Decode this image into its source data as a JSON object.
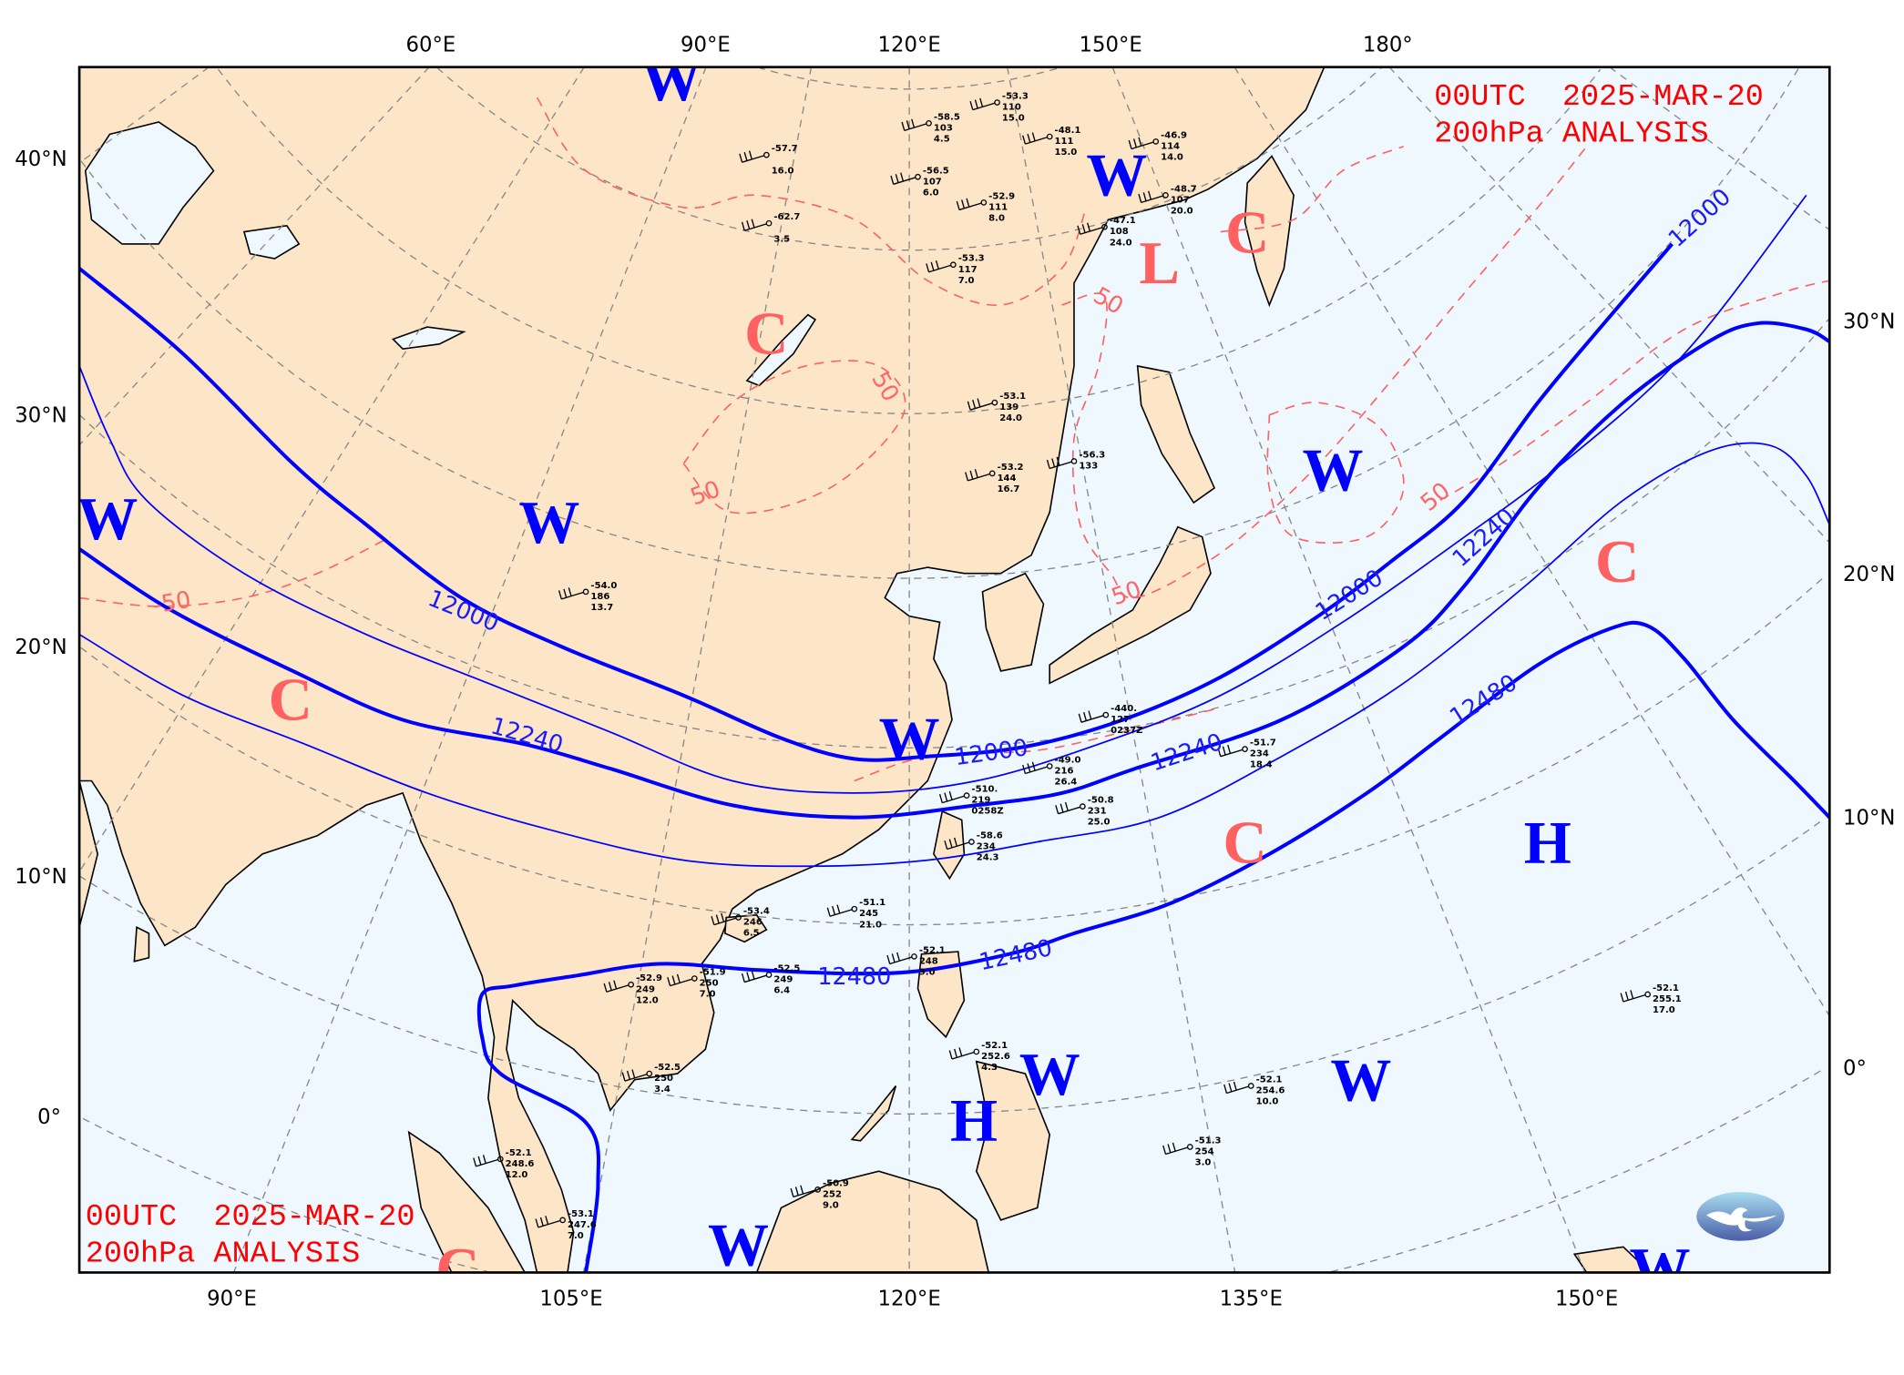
{
  "title": {
    "line1": "00UTC  2025-MAR-20",
    "line2": "200hPa ANALYSIS"
  },
  "colors": {
    "land": "#fde6c8",
    "ocean": "#eff8fe",
    "height_contour": "#0000ff",
    "isotherm": "#ff6060",
    "warm_center": "#0000ff",
    "cold_center": "#ff6060",
    "graticule": "#888888"
  },
  "axes": {
    "top": [
      "60°E",
      "90°E",
      "120°E",
      "150°E",
      "180°"
    ],
    "bottom": [
      "90°E",
      "105°E",
      "120°E",
      "135°E",
      "150°E"
    ],
    "left": [
      "40°N",
      "30°N",
      "20°N",
      "10°N",
      "0°"
    ],
    "right": [
      "30°N",
      "20°N",
      "10°N",
      "0°"
    ]
  },
  "centers": [
    {
      "label": "W",
      "type": "warm"
    },
    {
      "label": "W",
      "type": "warm"
    },
    {
      "label": "W",
      "type": "warm"
    },
    {
      "label": "W",
      "type": "warm"
    },
    {
      "label": "W",
      "type": "warm"
    },
    {
      "label": "W",
      "type": "warm"
    },
    {
      "label": "W",
      "type": "warm"
    },
    {
      "label": "W",
      "type": "warm"
    },
    {
      "label": "W",
      "type": "warm"
    },
    {
      "label": "W",
      "type": "warm"
    },
    {
      "label": "C",
      "type": "cold"
    },
    {
      "label": "C",
      "type": "cold"
    },
    {
      "label": "C",
      "type": "cold"
    },
    {
      "label": "C",
      "type": "cold"
    },
    {
      "label": "C",
      "type": "cold"
    },
    {
      "label": "C",
      "type": "cold"
    },
    {
      "label": "L",
      "type": "low"
    },
    {
      "label": "H",
      "type": "high"
    },
    {
      "label": "H",
      "type": "high"
    }
  ],
  "height_contour_labels": [
    "12000",
    "12000",
    "12000",
    "12000",
    "12240",
    "12240",
    "12240",
    "12480",
    "12480",
    "12480"
  ],
  "isotherm_labels": [
    "-50",
    "50",
    "50",
    "50",
    "50",
    "50"
  ],
  "stations": [
    {
      "t": "-58.5",
      "h": "103",
      "d": "4.5"
    },
    {
      "t": "-53.3",
      "h": "110",
      "d": "15.0"
    },
    {
      "t": "-56.5",
      "h": "107",
      "d": "6.0"
    },
    {
      "t": "-52.9",
      "h": "111",
      "d": "8.0"
    },
    {
      "t": "-53.3",
      "h": "117",
      "d": "7.0"
    },
    {
      "t": "-48.1",
      "h": "111",
      "d": "15.0"
    },
    {
      "t": "-46.9",
      "h": "114",
      "d": "14.0"
    },
    {
      "t": "-47.1",
      "h": "108",
      "d": "24.0"
    },
    {
      "t": "-48.7",
      "h": "107",
      "d": "20.0"
    },
    {
      "t": "-52.9",
      "h": "249",
      "d": "12.0"
    },
    {
      "t": "-51.9",
      "h": "250",
      "d": "7.0"
    },
    {
      "t": "-52.5",
      "h": "249",
      "d": "6.4"
    },
    {
      "t": "-52.5",
      "h": "250",
      "d": "3.4"
    },
    {
      "t": "-52.1",
      "h": "248",
      "d": "9.0"
    },
    {
      "t": "-52.1",
      "h": "252.6",
      "d": "4.3"
    },
    {
      "t": "-51.7",
      "h": "234",
      "d": "18.4"
    },
    {
      "t": "-50.8",
      "h": "231",
      "d": "25.0"
    },
    {
      "t": "-58.6",
      "h": "234",
      "d": "24.3"
    },
    {
      "t": "-49.0",
      "h": "216",
      "d": "26.4"
    },
    {
      "t": "-510.",
      "h": "219",
      "d": "0258Z"
    },
    {
      "t": "-440.",
      "h": "127",
      "d": "0237Z"
    },
    {
      "t": "-52.1",
      "h": "255.1",
      "d": "17.0"
    },
    {
      "t": "-52.1",
      "h": "254.6",
      "d": "10.0"
    },
    {
      "t": "-51.3",
      "h": "254",
      "d": "3.0"
    },
    {
      "t": "-50.9",
      "h": "252",
      "d": "9.0"
    },
    {
      "t": "-52.1",
      "h": "248.6",
      "d": "12.0"
    },
    {
      "t": "-53.1",
      "h": "247.6",
      "d": "7.0"
    },
    {
      "t": "-56.3",
      "h": "133",
      "d": ""
    },
    {
      "t": "-53.1",
      "h": "139",
      "d": "24.0"
    },
    {
      "t": "-53.2",
      "h": "144",
      "d": "16.7"
    },
    {
      "t": "-54.0",
      "h": "186",
      "d": "13.7"
    },
    {
      "t": "-57.7",
      "h": "",
      "d": "16.0"
    },
    {
      "t": "-62.7",
      "h": "",
      "d": "3.5"
    },
    {
      "t": "-51.1",
      "h": "245",
      "d": "21.0"
    },
    {
      "t": "-53.4",
      "h": "246",
      "d": "6.5"
    }
  ],
  "logo": "agency-logo"
}
